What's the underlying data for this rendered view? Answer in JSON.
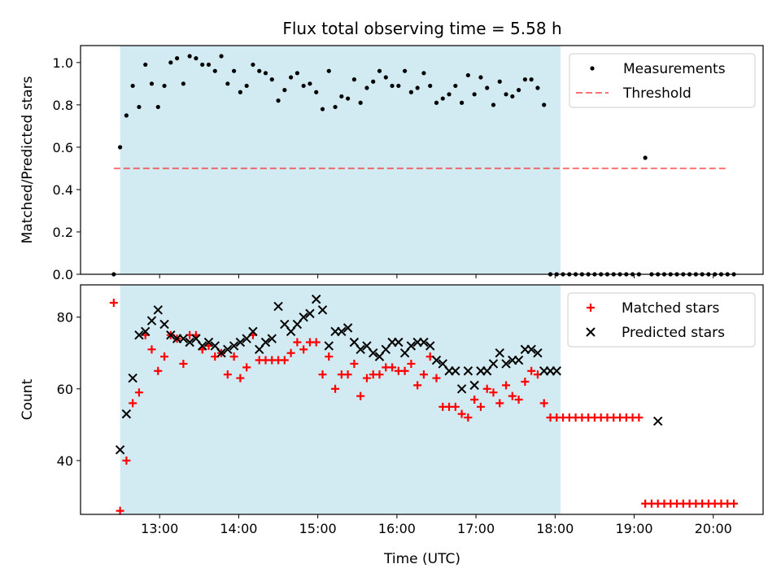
{
  "chart_data": {
    "title": "Flux total observing time = 5.58 h",
    "xlabel": "Time (UTC)",
    "x_unit": "hours UTC",
    "x_ticks": [
      {
        "value": 13,
        "label": "13:00"
      },
      {
        "value": 14,
        "label": "14:00"
      },
      {
        "value": 15,
        "label": "15:00"
      },
      {
        "value": 16,
        "label": "16:00"
      },
      {
        "value": 17,
        "label": "17:00"
      },
      {
        "value": 18,
        "label": "18:00"
      },
      {
        "value": 19,
        "label": "19:00"
      },
      {
        "value": 20,
        "label": "20:00"
      }
    ],
    "xlim": [
      12.0,
      20.63
    ],
    "shaded_interval": {
      "start": 12.5,
      "end": 18.07,
      "color": "#add8e6"
    },
    "panels": [
      {
        "type": "scatter",
        "ylabel": "Matched/Predicted stars",
        "ylim": [
          0.0,
          1.08
        ],
        "y_ticks": [
          {
            "value": 0.0,
            "label": "0.0"
          },
          {
            "value": 0.2,
            "label": "0.2"
          },
          {
            "value": 0.4,
            "label": "0.4"
          },
          {
            "value": 0.6,
            "label": "0.6"
          },
          {
            "value": 0.8,
            "label": "0.8"
          },
          {
            "value": 1.0,
            "label": "1.0"
          }
        ],
        "legend": {
          "location": "upper right",
          "entries": [
            "Measurements",
            "Threshold"
          ]
        },
        "series": [
          {
            "name": "Measurements",
            "marker": "dot",
            "color": "#000000",
            "x": [
              12.42,
              12.5,
              12.58,
              12.66,
              12.74,
              12.82,
              12.9,
              12.98,
              13.06,
              13.14,
              13.22,
              13.3,
              13.38,
              13.46,
              13.54,
              13.62,
              13.7,
              13.78,
              13.86,
              13.94,
              14.02,
              14.1,
              14.18,
              14.26,
              14.34,
              14.42,
              14.5,
              14.58,
              14.66,
              14.74,
              14.82,
              14.9,
              14.98,
              15.06,
              15.14,
              15.22,
              15.3,
              15.38,
              15.46,
              15.54,
              15.62,
              15.7,
              15.78,
              15.86,
              15.94,
              16.02,
              16.1,
              16.18,
              16.26,
              16.34,
              16.42,
              16.5,
              16.58,
              16.66,
              16.74,
              16.82,
              16.9,
              16.98,
              17.06,
              17.14,
              17.22,
              17.3,
              17.38,
              17.46,
              17.54,
              17.62,
              17.7,
              17.78,
              17.86,
              17.94,
              18.02,
              18.1,
              18.18,
              18.26,
              18.34,
              18.42,
              18.5,
              18.58,
              18.66,
              18.74,
              18.82,
              18.9,
              18.98,
              19.06,
              19.14,
              19.22,
              19.3,
              19.38,
              19.46,
              19.54,
              19.62,
              19.7,
              19.78,
              19.86,
              19.94,
              20.02,
              20.1,
              20.18,
              20.26
            ],
            "y": [
              0.0,
              0.6,
              0.75,
              0.89,
              0.79,
              0.99,
              0.9,
              0.79,
              0.89,
              1.0,
              1.02,
              0.9,
              1.03,
              1.02,
              0.99,
              0.99,
              0.96,
              1.03,
              0.9,
              0.96,
              0.86,
              0.89,
              0.99,
              0.96,
              0.95,
              0.92,
              0.82,
              0.87,
              0.93,
              0.95,
              0.89,
              0.9,
              0.86,
              0.78,
              0.96,
              0.79,
              0.84,
              0.83,
              0.92,
              0.81,
              0.88,
              0.91,
              0.96,
              0.93,
              0.89,
              0.89,
              0.96,
              0.86,
              0.88,
              0.95,
              0.89,
              0.81,
              0.83,
              0.85,
              0.89,
              0.81,
              0.94,
              0.85,
              0.93,
              0.88,
              0.8,
              0.91,
              0.85,
              0.84,
              0.87,
              0.92,
              0.92,
              0.88,
              0.8,
              0.0,
              0.0,
              0.0,
              0.0,
              0.0,
              0.0,
              0.0,
              0.0,
              0.0,
              0.0,
              0.0,
              0.0,
              0.0,
              0.0,
              0.0,
              0.55,
              0.0,
              0.0,
              0.0,
              0.0,
              0.0,
              0.0,
              0.0,
              0.0,
              0.0,
              0.0,
              0.0,
              0.0,
              0.0,
              0.0
            ]
          },
          {
            "name": "Threshold",
            "type": "line",
            "style": "dashed",
            "color": "#ff0000",
            "x": [
              12.42,
              20.18
            ],
            "y": [
              0.5,
              0.5
            ]
          }
        ]
      },
      {
        "type": "scatter",
        "ylabel": "Count",
        "ylim": [
          25,
          89
        ],
        "y_ticks": [
          {
            "value": 40,
            "label": "40"
          },
          {
            "value": 60,
            "label": "60"
          },
          {
            "value": 80,
            "label": "80"
          }
        ],
        "legend": {
          "location": "upper right",
          "entries": [
            "Matched stars",
            "Predicted stars"
          ]
        },
        "series": [
          {
            "name": "Matched stars",
            "marker": "plus",
            "color": "#ff0000",
            "x": [
              12.42,
              12.5,
              12.58,
              12.66,
              12.74,
              12.82,
              12.9,
              12.98,
              13.06,
              13.14,
              13.22,
              13.3,
              13.38,
              13.46,
              13.54,
              13.62,
              13.7,
              13.78,
              13.86,
              13.94,
              14.02,
              14.1,
              14.18,
              14.26,
              14.34,
              14.42,
              14.5,
              14.58,
              14.66,
              14.74,
              14.82,
              14.9,
              14.98,
              15.06,
              15.14,
              15.22,
              15.3,
              15.38,
              15.46,
              15.54,
              15.62,
              15.7,
              15.78,
              15.86,
              15.94,
              16.02,
              16.1,
              16.18,
              16.26,
              16.34,
              16.42,
              16.5,
              16.58,
              16.66,
              16.74,
              16.82,
              16.9,
              16.98,
              17.06,
              17.14,
              17.22,
              17.3,
              17.38,
              17.46,
              17.54,
              17.62,
              17.7,
              17.78,
              17.86,
              17.94,
              18.02,
              18.1,
              18.18,
              18.26,
              18.34,
              18.42,
              18.5,
              18.58,
              18.66,
              18.74,
              18.82,
              18.9,
              18.98,
              19.06,
              19.14,
              19.22,
              19.3,
              19.38,
              19.46,
              19.54,
              19.62,
              19.7,
              19.78,
              19.86,
              19.94,
              20.02,
              20.1,
              20.18,
              20.26
            ],
            "y": [
              84,
              26,
              40,
              56,
              59,
              75,
              71,
              65,
              69,
              75,
              74,
              67,
              75,
              75,
              71,
              72,
              69,
              70,
              64,
              69,
              63,
              66,
              75,
              68,
              68,
              68,
              68,
              68,
              70,
              73,
              71,
              73,
              73,
              64,
              69,
              60,
              64,
              64,
              67,
              58,
              63,
              64,
              64,
              66,
              66,
              65,
              65,
              67,
              61,
              64,
              69,
              63,
              55,
              55,
              55,
              53,
              52,
              57,
              55,
              60,
              59,
              56,
              61,
              58,
              57,
              62,
              65,
              64,
              56,
              52,
              52,
              52,
              52,
              52,
              52,
              52,
              52,
              52,
              52,
              52,
              52,
              52,
              52,
              52,
              28,
              28,
              28,
              28,
              28,
              28,
              28,
              28,
              28,
              28,
              28,
              28,
              28,
              28,
              28
            ]
          },
          {
            "name": "Predicted stars",
            "marker": "x",
            "color": "#000000",
            "x": [
              12.5,
              12.58,
              12.66,
              12.74,
              12.82,
              12.9,
              12.98,
              13.06,
              13.14,
              13.22,
              13.3,
              13.38,
              13.46,
              13.54,
              13.62,
              13.7,
              13.78,
              13.86,
              13.94,
              14.02,
              14.1,
              14.18,
              14.26,
              14.34,
              14.42,
              14.5,
              14.58,
              14.66,
              14.74,
              14.82,
              14.9,
              14.98,
              15.06,
              15.14,
              15.22,
              15.3,
              15.38,
              15.46,
              15.54,
              15.62,
              15.7,
              15.78,
              15.86,
              15.94,
              16.02,
              16.1,
              16.18,
              16.26,
              16.34,
              16.42,
              16.5,
              16.58,
              16.66,
              16.74,
              16.82,
              16.9,
              16.98,
              17.06,
              17.14,
              17.22,
              17.3,
              17.38,
              17.46,
              17.54,
              17.62,
              17.7,
              17.78,
              17.86,
              17.94,
              18.02,
              19.3
            ],
            "y": [
              43,
              53,
              63,
              75,
              76,
              79,
              82,
              78,
              75,
              74,
              74,
              73,
              74,
              72,
              73,
              72,
              70,
              71,
              72,
              73,
              74,
              76,
              71,
              73,
              74,
              83,
              78,
              76,
              78,
              80,
              81,
              85,
              82,
              72,
              76,
              76,
              77,
              73,
              71,
              72,
              70,
              69,
              71,
              73,
              73,
              70,
              72,
              73,
              73,
              72,
              68,
              67,
              65,
              65,
              60,
              65,
              61,
              65,
              65,
              67,
              70,
              67,
              68,
              68,
              71,
              71,
              70,
              65,
              65,
              65,
              51
            ]
          }
        ]
      }
    ]
  }
}
